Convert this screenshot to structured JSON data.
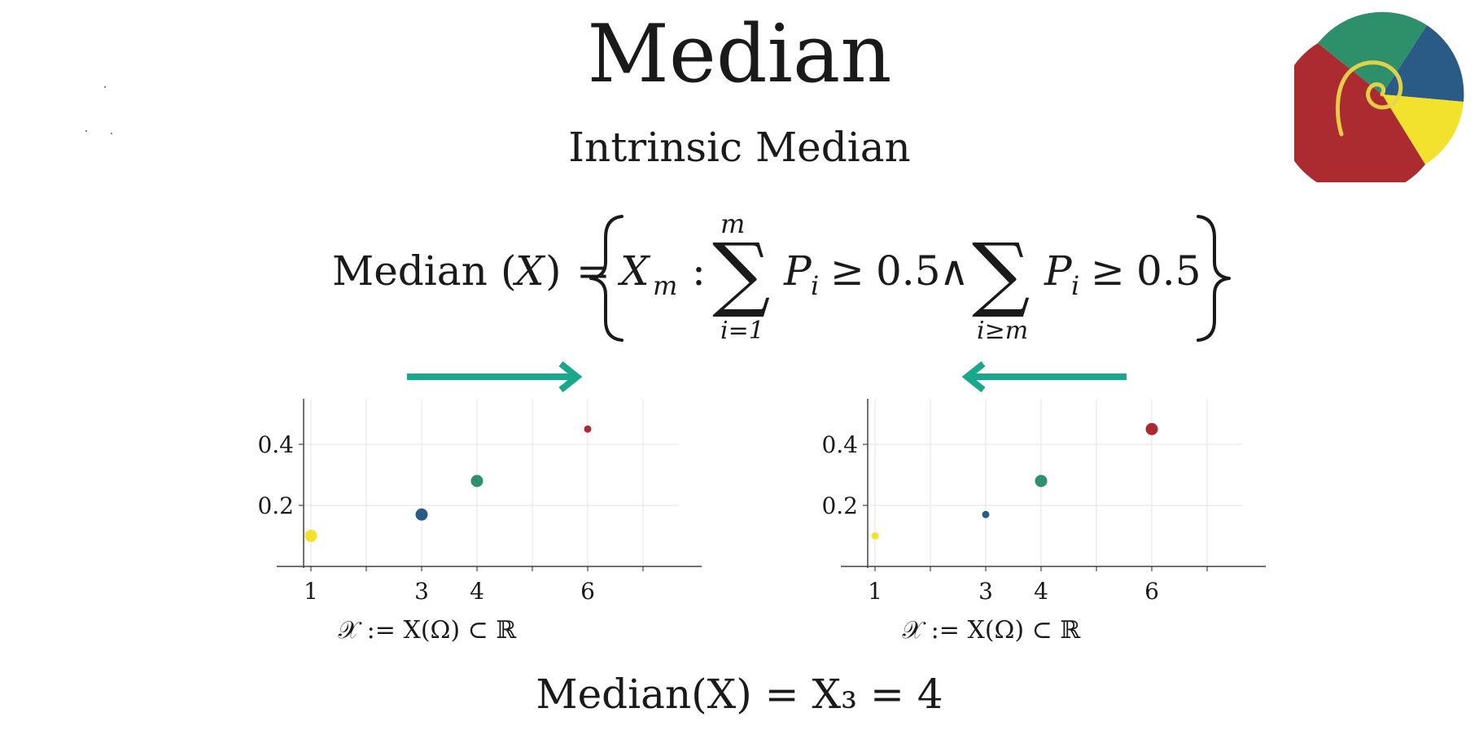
{
  "slide": {
    "title": "Median",
    "subtitle": "Intrinsic Median",
    "formula": {
      "lhs_func": "Median",
      "lhs_arg": "X",
      "xm_base": "X",
      "xm_sub": "m",
      "colon": ":",
      "sum1_upper": "m",
      "sum1_lower": "i=1",
      "term_base": "P",
      "term_sub": "i",
      "geq": "≥",
      "threshold": "0.5",
      "and": "∧",
      "sum2_lower": "i≥m"
    },
    "conclusion": "Median(X) = X₃ = 4"
  },
  "arrows": [
    {
      "direction": "right",
      "color": "#1aa88d"
    },
    {
      "direction": "left",
      "color": "#1aa88d"
    }
  ],
  "logo": {
    "colors": [
      "#ab2b30",
      "#2e8f6b",
      "#2a5a86",
      "#f2e22d"
    ],
    "spiral_color": "#e8d64a"
  },
  "chart_data": [
    {
      "type": "scatter",
      "side": "left",
      "xlabel": "𝒳 := X(Ω) ⊂ ℝ",
      "xticks": [
        1,
        3,
        4,
        6
      ],
      "xticklabels": [
        "1",
        "3",
        "4",
        "6"
      ],
      "yticks": [
        0.2,
        0.4
      ],
      "yticklabels": [
        "0.2",
        "0.4"
      ],
      "xlim": [
        0,
        7
      ],
      "ylim": [
        0,
        0.52
      ],
      "grid": true,
      "points": [
        {
          "x": 1,
          "y": 0.1,
          "color": "#f2e22d",
          "emphasized": true
        },
        {
          "x": 3,
          "y": 0.17,
          "color": "#2a5a86",
          "emphasized": true
        },
        {
          "x": 4,
          "y": 0.28,
          "color": "#2e8f6b",
          "emphasized": true
        },
        {
          "x": 6,
          "y": 0.45,
          "color": "#ab2b30",
          "emphasized": false
        }
      ]
    },
    {
      "type": "scatter",
      "side": "right",
      "xlabel": "𝒳 := X(Ω) ⊂ ℝ",
      "xticks": [
        1,
        3,
        4,
        6
      ],
      "xticklabels": [
        "1",
        "3",
        "4",
        "6"
      ],
      "yticks": [
        0.2,
        0.4
      ],
      "yticklabels": [
        "0.2",
        "0.4"
      ],
      "xlim": [
        0,
        7
      ],
      "ylim": [
        0,
        0.52
      ],
      "grid": true,
      "points": [
        {
          "x": 1,
          "y": 0.1,
          "color": "#f2e22d",
          "emphasized": false
        },
        {
          "x": 3,
          "y": 0.17,
          "color": "#2a5a86",
          "emphasized": false
        },
        {
          "x": 4,
          "y": 0.28,
          "color": "#2e8f6b",
          "emphasized": true
        },
        {
          "x": 6,
          "y": 0.45,
          "color": "#ab2b30",
          "emphasized": true
        }
      ]
    }
  ]
}
